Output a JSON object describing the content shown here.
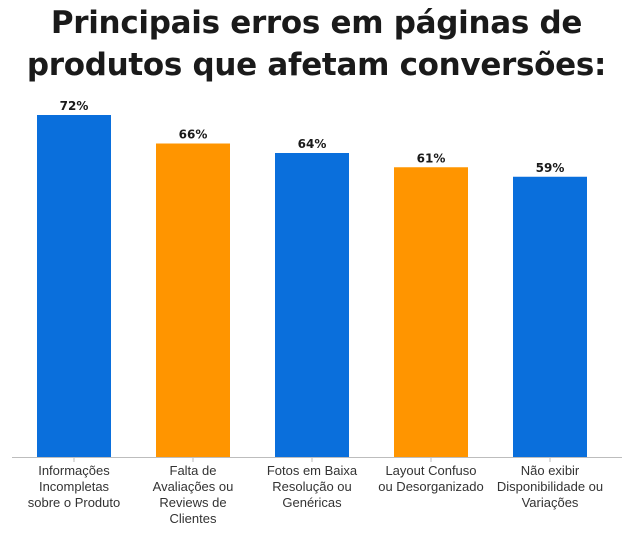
{
  "title_lines": [
    "Principais erros em páginas de",
    "produtos que afetam conversões:"
  ],
  "chart_data": {
    "type": "bar",
    "title": "Principais erros em páginas de produtos que afetam conversões:",
    "categories": [
      "Informações Incompletas sobre o Produto",
      "Falta de Avaliações ou Reviews de Clientes",
      "Fotos em Baixa Resolução ou Genéricas",
      "Layout Confuso ou Desorganizado",
      "Não exibir Disponibilidade ou Variações"
    ],
    "category_lines": [
      [
        "Informações",
        "Incompletas",
        "sobre o Produto"
      ],
      [
        "Falta de",
        "Avaliações ou",
        "Reviews de",
        "Clientes"
      ],
      [
        "Fotos em Baixa",
        "Resolução ou",
        "Genéricas"
      ],
      [
        "Layout Confuso",
        "ou Desorganizado"
      ],
      [
        "Não exibir",
        "Disponibilidade ou",
        "Variações"
      ]
    ],
    "values": [
      72,
      66,
      64,
      61,
      59
    ],
    "value_labels": [
      "72%",
      "66%",
      "64%",
      "61%",
      "59%"
    ],
    "bar_colors": [
      "#0a6fdc",
      "#ff9500",
      "#0a6fdc",
      "#ff9500",
      "#0a6fdc"
    ],
    "ylim": [
      0,
      100
    ],
    "grid": false,
    "legend": "none"
  }
}
